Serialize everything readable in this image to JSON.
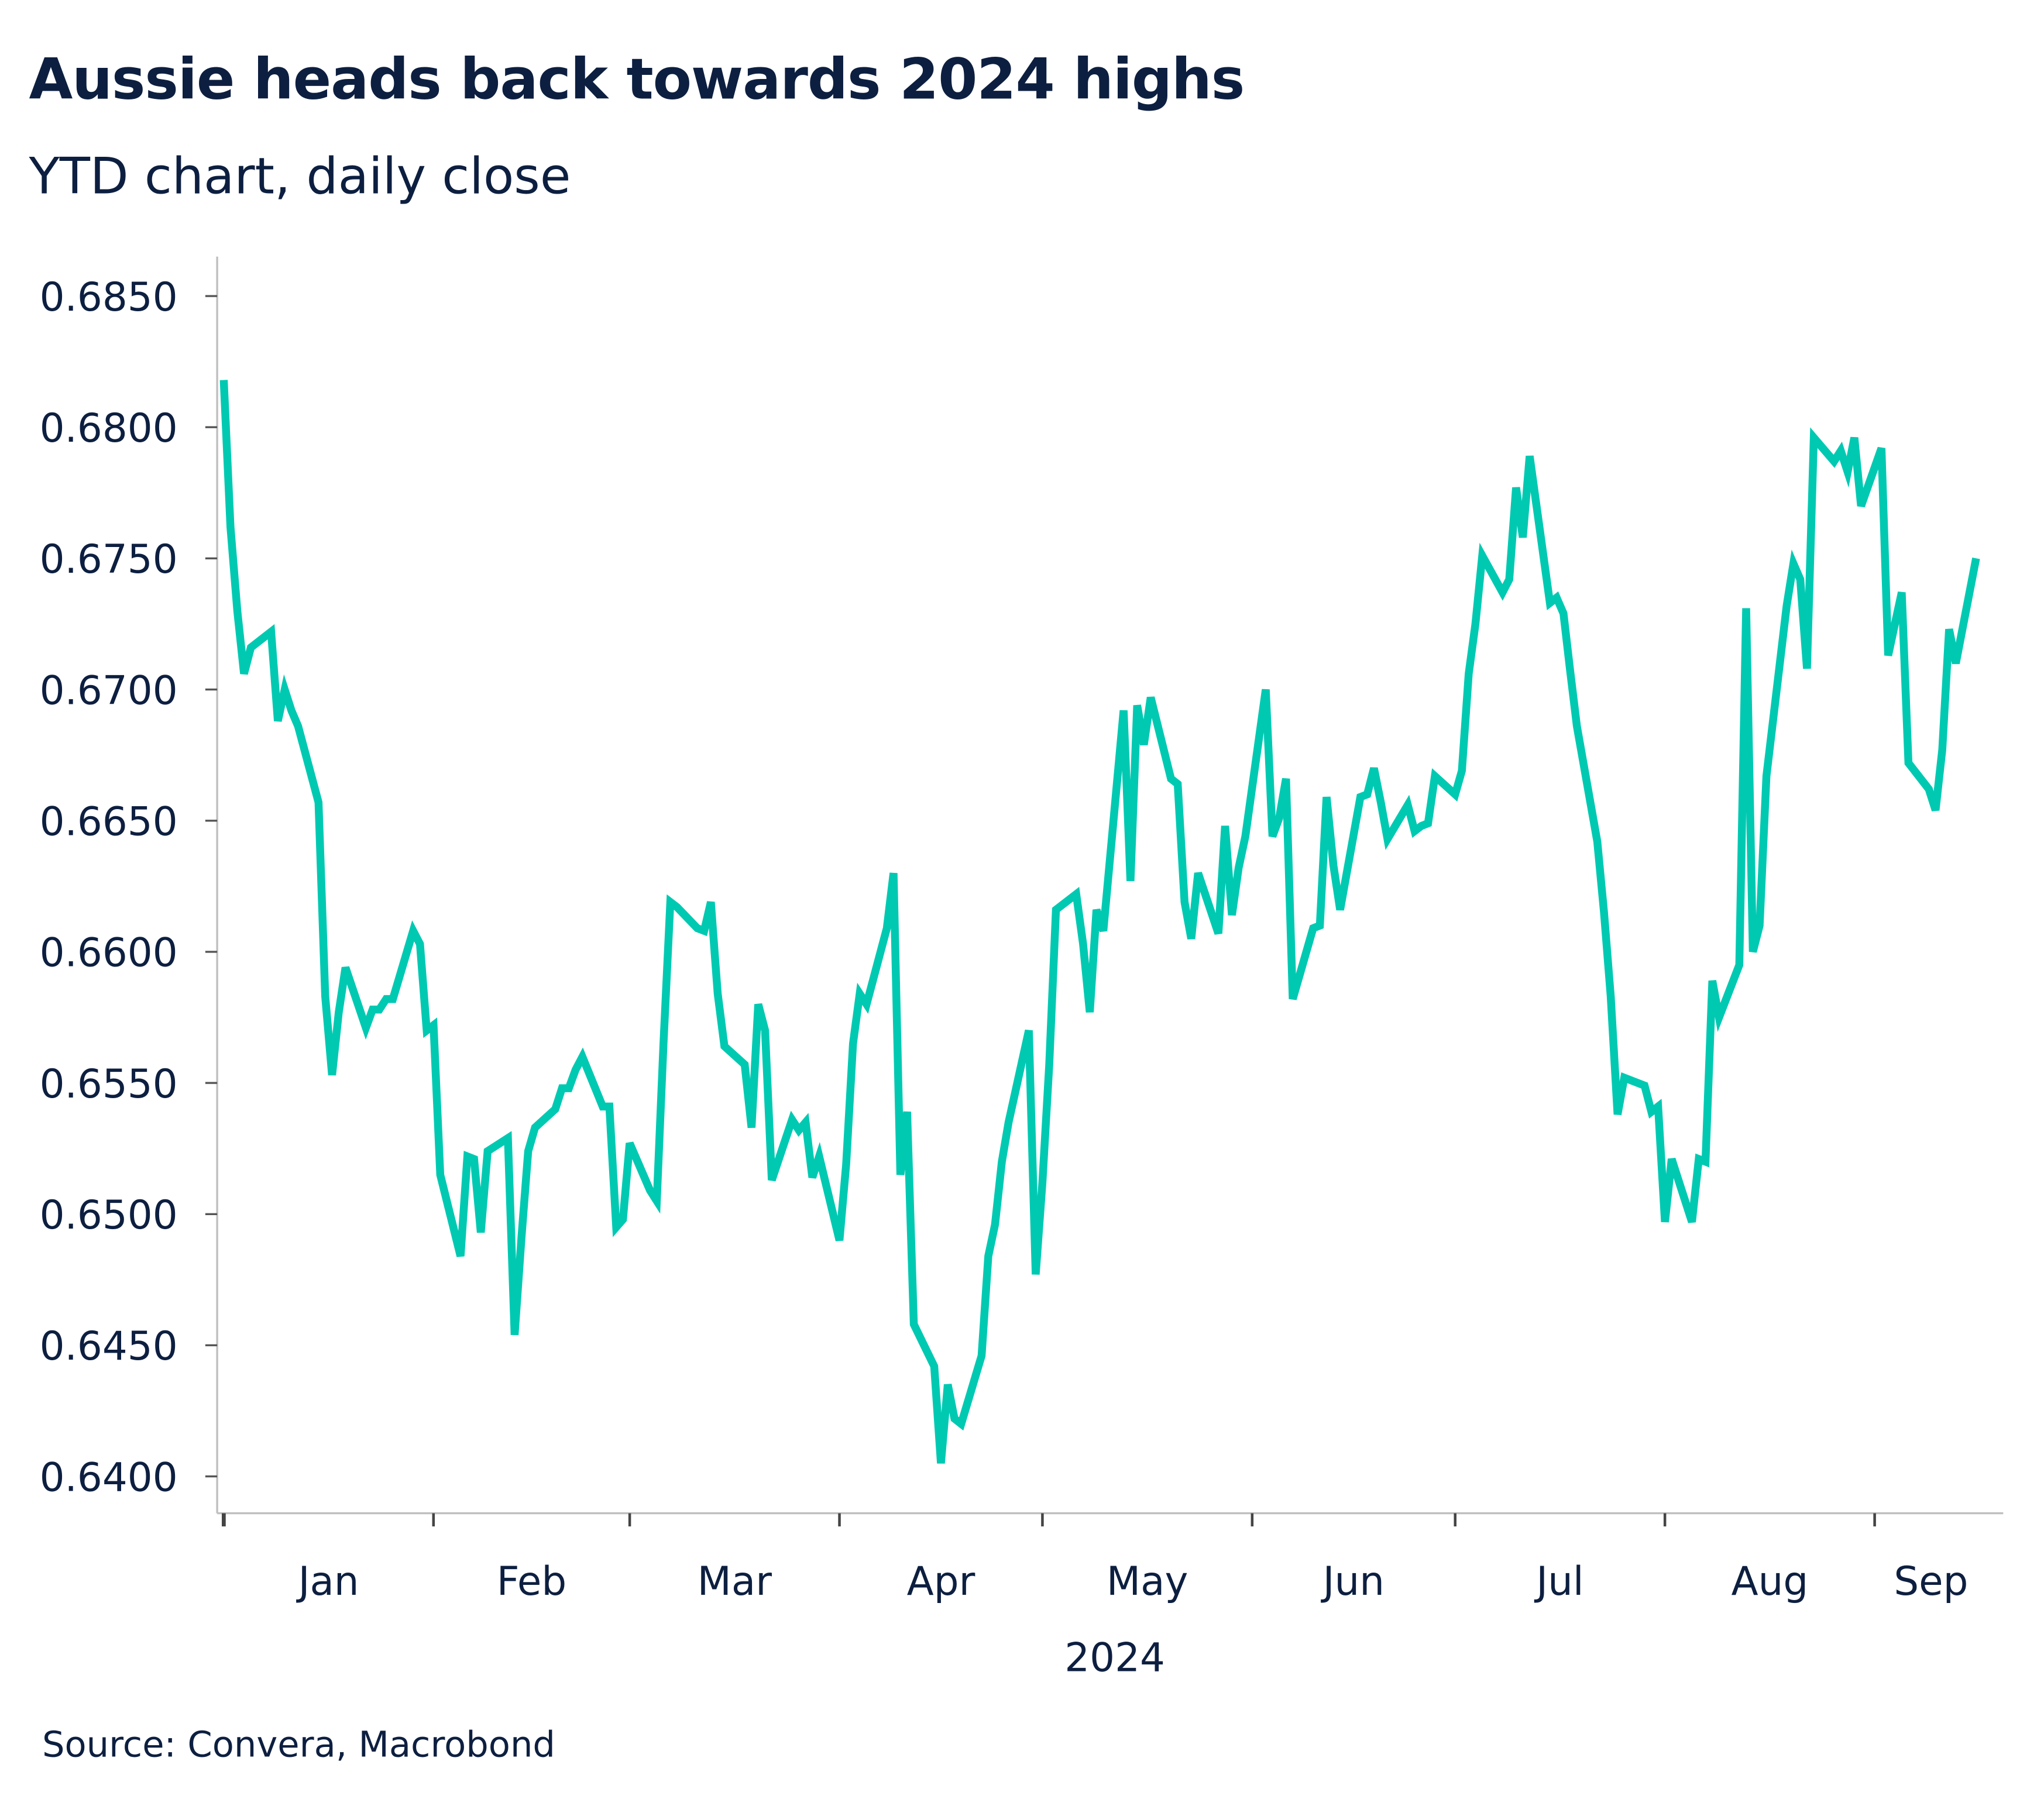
{
  "title": "Aussie heads back towards 2024 highs",
  "subtitle": "YTD chart, daily close",
  "source": "Source: Convera, Macrobond",
  "colors": {
    "line": "#00c9b2",
    "text": "#0d1f40",
    "axis": "#bfbfbf"
  },
  "chart_data": {
    "type": "line",
    "title": "Aussie heads back towards 2024 highs",
    "subtitle": "YTD chart, daily close",
    "xlabel": "2024",
    "ylabel": "",
    "ylim": [
      0.6385,
      0.6865
    ],
    "xlim": [
      "2024-01-01",
      "2024-09-20"
    ],
    "grid": false,
    "legend": "none",
    "y_ticks": [
      "0.6400",
      "0.6450",
      "0.6500",
      "0.6550",
      "0.6600",
      "0.6650",
      "0.6700",
      "0.6750",
      "0.6800",
      "0.6850"
    ],
    "x_ticks": [
      {
        "label": "Jan",
        "start": "2024-01-01",
        "end": "2024-02-01"
      },
      {
        "label": "Feb",
        "start": "2024-02-01",
        "end": "2024-03-01"
      },
      {
        "label": "Mar",
        "start": "2024-03-01",
        "end": "2024-04-01"
      },
      {
        "label": "Apr",
        "start": "2024-04-01",
        "end": "2024-05-01"
      },
      {
        "label": "May",
        "start": "2024-05-01",
        "end": "2024-06-01"
      },
      {
        "label": "Jun",
        "start": "2024-06-01",
        "end": "2024-07-01"
      },
      {
        "label": "Jul",
        "start": "2024-07-01",
        "end": "2024-08-01"
      },
      {
        "label": "Aug",
        "start": "2024-08-01",
        "end": "2024-09-01"
      },
      {
        "label": "Sep",
        "start": "2024-09-01",
        "end": "2024-09-20"
      }
    ],
    "x": [
      "2024-01-01",
      "2024-01-02",
      "2024-01-03",
      "2024-01-04",
      "2024-01-05",
      "2024-01-08",
      "2024-01-09",
      "2024-01-10",
      "2024-01-11",
      "2024-01-12",
      "2024-01-15",
      "2024-01-16",
      "2024-01-17",
      "2024-01-18",
      "2024-01-19",
      "2024-01-22",
      "2024-01-23",
      "2024-01-24",
      "2024-01-25",
      "2024-01-26",
      "2024-01-29",
      "2024-01-30",
      "2024-01-31",
      "2024-02-01",
      "2024-02-02",
      "2024-02-05",
      "2024-02-06",
      "2024-02-07",
      "2024-02-08",
      "2024-02-09",
      "2024-02-12",
      "2024-02-13",
      "2024-02-14",
      "2024-02-15",
      "2024-02-16",
      "2024-02-19",
      "2024-02-20",
      "2024-02-21",
      "2024-02-22",
      "2024-02-23",
      "2024-02-26",
      "2024-02-27",
      "2024-02-28",
      "2024-02-29",
      "2024-03-01",
      "2024-03-04",
      "2024-03-05",
      "2024-03-06",
      "2024-03-07",
      "2024-03-08",
      "2024-03-11",
      "2024-03-12",
      "2024-03-13",
      "2024-03-14",
      "2024-03-15",
      "2024-03-18",
      "2024-03-19",
      "2024-03-20",
      "2024-03-21",
      "2024-03-22",
      "2024-03-25",
      "2024-03-26",
      "2024-03-27",
      "2024-03-28",
      "2024-03-29",
      "2024-04-01",
      "2024-04-02",
      "2024-04-03",
      "2024-04-04",
      "2024-04-05",
      "2024-04-08",
      "2024-04-09",
      "2024-04-10",
      "2024-04-11",
      "2024-04-12",
      "2024-04-15",
      "2024-04-16",
      "2024-04-17",
      "2024-04-18",
      "2024-04-19",
      "2024-04-22",
      "2024-04-23",
      "2024-04-24",
      "2024-04-25",
      "2024-04-26",
      "2024-04-29",
      "2024-04-30",
      "2024-05-01",
      "2024-05-02",
      "2024-05-03",
      "2024-05-06",
      "2024-05-07",
      "2024-05-08",
      "2024-05-09",
      "2024-05-10",
      "2024-05-13",
      "2024-05-14",
      "2024-05-15",
      "2024-05-16",
      "2024-05-17",
      "2024-05-20",
      "2024-05-21",
      "2024-05-22",
      "2024-05-23",
      "2024-05-24",
      "2024-05-27",
      "2024-05-28",
      "2024-05-29",
      "2024-05-30",
      "2024-05-31",
      "2024-06-03",
      "2024-06-04",
      "2024-06-05",
      "2024-06-06",
      "2024-06-07",
      "2024-06-10",
      "2024-06-11",
      "2024-06-12",
      "2024-06-13",
      "2024-06-14",
      "2024-06-17",
      "2024-06-18",
      "2024-06-19",
      "2024-06-20",
      "2024-06-21",
      "2024-06-24",
      "2024-06-25",
      "2024-06-26",
      "2024-06-27",
      "2024-06-28",
      "2024-07-01",
      "2024-07-02",
      "2024-07-03",
      "2024-07-04",
      "2024-07-05",
      "2024-07-08",
      "2024-07-09",
      "2024-07-10",
      "2024-07-11",
      "2024-07-12",
      "2024-07-15",
      "2024-07-16",
      "2024-07-17",
      "2024-07-18",
      "2024-07-19",
      "2024-07-22",
      "2024-07-23",
      "2024-07-24",
      "2024-07-25",
      "2024-07-26",
      "2024-07-29",
      "2024-07-30",
      "2024-07-31",
      "2024-08-01",
      "2024-08-02",
      "2024-08-05",
      "2024-08-06",
      "2024-08-07",
      "2024-08-08",
      "2024-08-09",
      "2024-08-12",
      "2024-08-13",
      "2024-08-14",
      "2024-08-15",
      "2024-08-16",
      "2024-08-19",
      "2024-08-20",
      "2024-08-21",
      "2024-08-22",
      "2024-08-23",
      "2024-08-26",
      "2024-08-27",
      "2024-08-28",
      "2024-08-29",
      "2024-08-30",
      "2024-09-02",
      "2024-09-03",
      "2024-09-04",
      "2024-09-05",
      "2024-09-06",
      "2024-09-09",
      "2024-09-10",
      "2024-09-11",
      "2024-09-12",
      "2024-09-13",
      "2024-09-16"
    ],
    "values": [
      0.6818,
      0.6762,
      0.673,
      0.6706,
      0.6716,
      0.6722,
      0.6688,
      0.67,
      0.6692,
      0.6686,
      0.6657,
      0.6583,
      0.6553,
      0.6577,
      0.6594,
      0.6571,
      0.6578,
      0.6578,
      0.6582,
      0.6582,
      0.6608,
      0.6603,
      0.657,
      0.6572,
      0.6515,
      0.6484,
      0.6522,
      0.6521,
      0.6493,
      0.6524,
      0.6529,
      0.6454,
      0.6491,
      0.6524,
      0.6533,
      0.654,
      0.6548,
      0.6548,
      0.6555,
      0.656,
      0.6541,
      0.6541,
      0.6495,
      0.6498,
      0.6527,
      0.6509,
      0.6505,
      0.6565,
      0.6619,
      0.6617,
      0.6609,
      0.6608,
      0.6619,
      0.6584,
      0.6564,
      0.6557,
      0.6533,
      0.658,
      0.657,
      0.6513,
      0.6536,
      0.6532,
      0.6535,
      0.6514,
      0.6522,
      0.649,
      0.6519,
      0.6565,
      0.6584,
      0.658,
      0.6609,
      0.663,
      0.6515,
      0.6539,
      0.6458,
      0.6442,
      0.6405,
      0.6435,
      0.6422,
      0.642,
      0.6446,
      0.6484,
      0.6496,
      0.652,
      0.6535,
      0.657,
      0.6477,
      0.6512,
      0.6557,
      0.6616,
      0.6622,
      0.6603,
      0.6577,
      0.6616,
      0.6608,
      0.6692,
      0.6627,
      0.6694,
      0.6679,
      0.6697,
      0.6666,
      0.6664,
      0.6619,
      0.6605,
      0.663,
      0.6607,
      0.6648,
      0.6614,
      0.6632,
      0.6644,
      0.67,
      0.6644,
      0.6651,
      0.6666,
      0.6582,
      0.6609,
      0.661,
      0.6659,
      0.6633,
      0.6616,
      0.6659,
      0.666,
      0.667,
      0.6657,
      0.6643,
      0.6656,
      0.6646,
      0.6648,
      0.6649,
      0.6667,
      0.666,
      0.6669,
      0.6706,
      0.6725,
      0.6751,
      0.6737,
      0.6742,
      0.6777,
      0.6758,
      0.6789,
      0.6733,
      0.6735,
      0.6729,
      0.6707,
      0.6686,
      0.6642,
      0.6615,
      0.6583,
      0.6538,
      0.6552,
      0.6549,
      0.6539,
      0.6541,
      0.6497,
      0.6521,
      0.6497,
      0.6521,
      0.652,
      0.6589,
      0.6575,
      0.6595,
      0.6731,
      0.66,
      0.661,
      0.6667,
      0.6732,
      0.6748,
      0.6742,
      0.6708,
      0.6796,
      0.6787,
      0.6791,
      0.6783,
      0.6796,
      0.677,
      0.6792,
      0.6713,
      0.6725,
      0.6737,
      0.6672,
      0.6662,
      0.6654,
      0.6677,
      0.6723,
      0.671,
      0.675
    ]
  }
}
